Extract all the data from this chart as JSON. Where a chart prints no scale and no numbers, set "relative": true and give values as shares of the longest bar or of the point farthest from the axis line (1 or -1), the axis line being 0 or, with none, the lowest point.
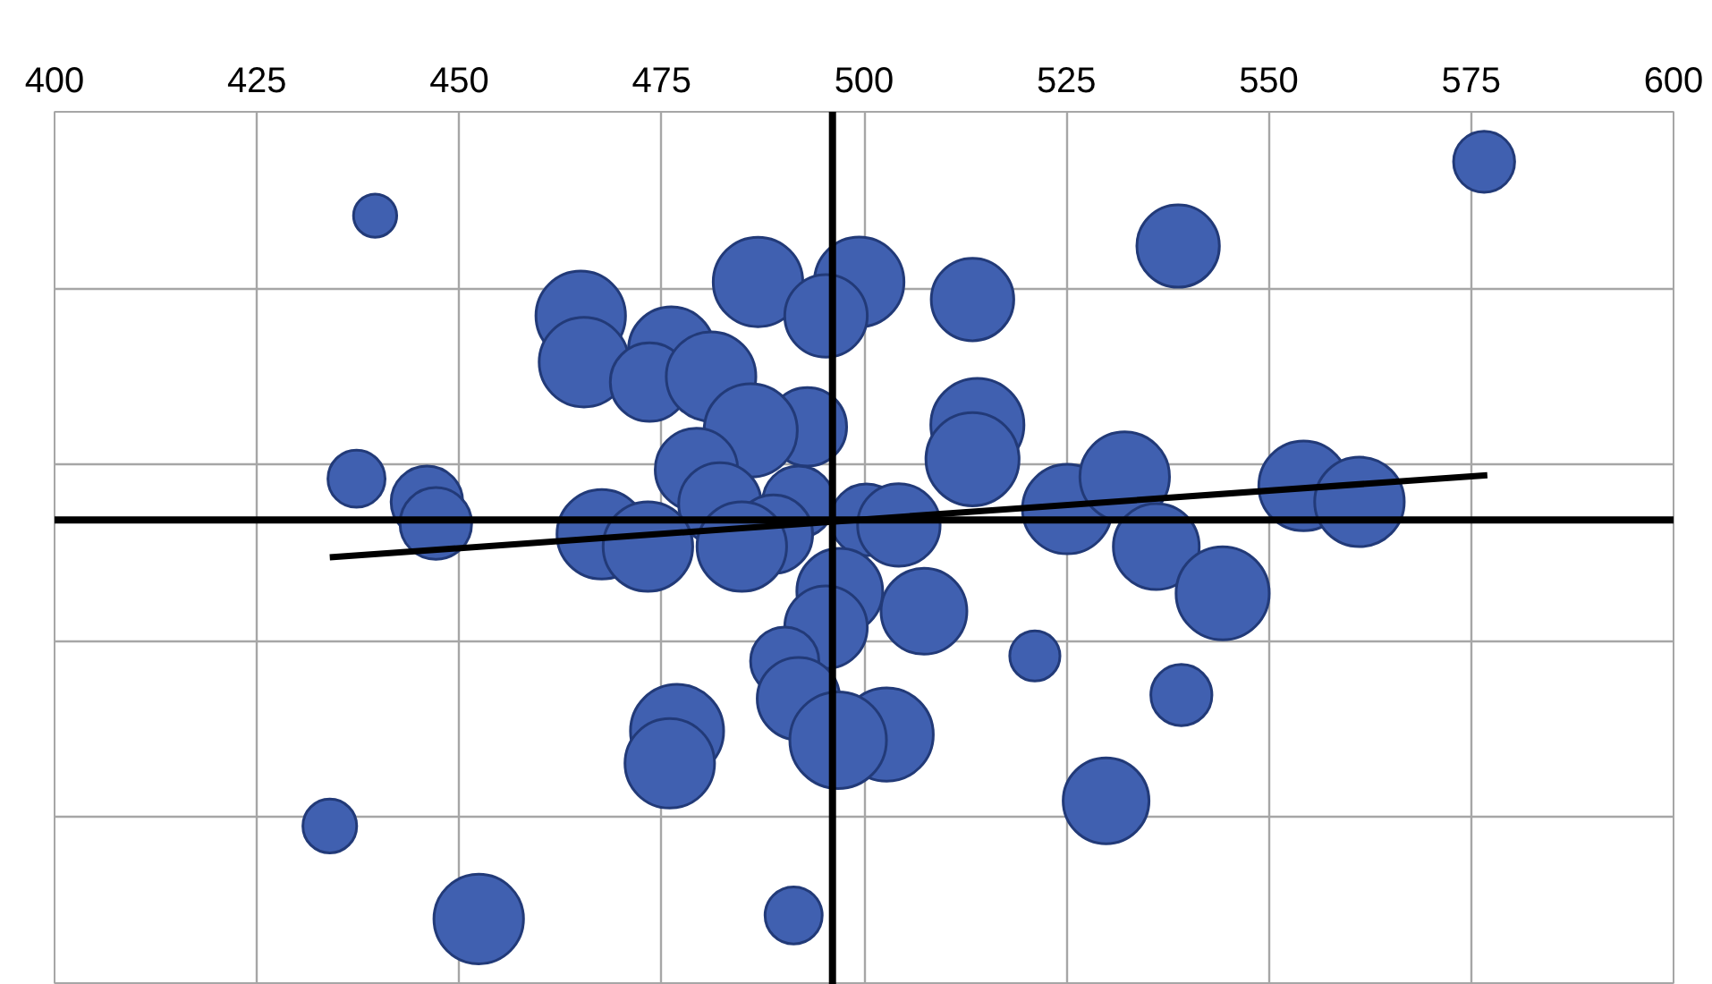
{
  "chart_data": {
    "type": "bubble",
    "relative": true,
    "grid": true,
    "xlim": [
      400,
      600
    ],
    "xticks": [
      400,
      425,
      450,
      475,
      500,
      525,
      550,
      575,
      600
    ],
    "ref_lines": [
      {
        "axis": "x",
        "value": 496.1,
        "color": "#000000"
      }
    ],
    "series": [
      {
        "color": "#4060b0",
        "x": [
          576.6,
          439.6,
          538.8,
          486.9,
          499.4,
          495.3,
          513.4,
          465.0,
          465.4,
          476.2,
          473.5,
          481.1,
          493.0,
          486.0,
          514.0,
          513.4,
          437.3,
          446.0,
          447.1,
          479.3,
          482.2,
          491.9,
          500.3,
          488.8,
          467.6,
          473.3,
          484.9,
          504.3,
          525.1,
          532.2,
          554.3,
          561.2,
          536.1,
          544.3,
          507.4,
          497.0,
          495.3,
          490.2,
          491.9,
          521.1,
          539.2,
          476.9,
          476.0,
          502.8,
          496.8,
          529.9,
          434.0,
          452.4,
          491.3
        ],
        "values": [
          0.897,
          0.762,
          0.686,
          0.596,
          0.596,
          0.511,
          0.552,
          0.511,
          0.395,
          0.426,
          0.345,
          0.359,
          0.233,
          0.224,
          0.238,
          0.152,
          0.103,
          0.045,
          -0.009,
          0.126,
          0.04,
          0.045,
          0,
          -0.036,
          -0.036,
          -0.067,
          -0.067,
          -0.013,
          0.027,
          0.108,
          0.085,
          0.045,
          -0.067,
          -0.184,
          -0.229,
          -0.179,
          -0.269,
          -0.354,
          -0.448,
          -0.341,
          -0.439,
          -0.529,
          -0.61,
          -0.538,
          -0.552,
          -0.704,
          -0.767,
          -1.0,
          -0.991
        ],
        "sizes": [
          0.4,
          0.2,
          0.73,
          0.86,
          0.86,
          0.73,
          0.73,
          0.86,
          0.86,
          0.79,
          0.66,
          0.86,
          0.66,
          0.93,
          0.93,
          0.93,
          0.35,
          0.55,
          0.55,
          0.73,
          0.73,
          0.55,
          0.55,
          0.66,
          0.86,
          0.86,
          0.86,
          0.73,
          0.86,
          0.86,
          0.86,
          0.86,
          0.79,
          0.93,
          0.79,
          0.79,
          0.73,
          0.5,
          0.73,
          0.27,
          0.4,
          0.93,
          0.86,
          0.93,
          1.0,
          0.79,
          0.31,
          0.86,
          0.35
        ]
      },
      {
        "type": "line",
        "color": "#000000",
        "x": [
          434.0,
          577.0
        ],
        "values": [
          -0.094,
          0.112
        ]
      }
    ]
  }
}
